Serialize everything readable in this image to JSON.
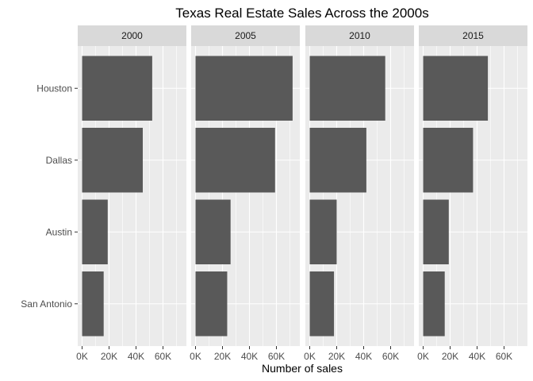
{
  "chart_data": {
    "type": "bar",
    "orientation": "horizontal",
    "title": "Texas Real Estate Sales Across the 2000s",
    "xlabel": "Number of sales",
    "ylabel": "",
    "categories": [
      "Houston",
      "Dallas",
      "Austin",
      "San Antonio"
    ],
    "facets": [
      {
        "label": "2000",
        "values": [
          52000,
          45000,
          19000,
          16000
        ]
      },
      {
        "label": "2005",
        "values": [
          72000,
          59000,
          26000,
          23500
        ]
      },
      {
        "label": "2010",
        "values": [
          56000,
          42000,
          20000,
          18000
        ]
      },
      {
        "label": "2015",
        "values": [
          48000,
          37000,
          19000,
          16000
        ]
      }
    ],
    "xlim": [
      0,
      75000
    ],
    "x_ticks": [
      0,
      20000,
      40000,
      60000
    ],
    "x_tick_labels": [
      "0K",
      "20K",
      "40K",
      "60K"
    ],
    "grid": true,
    "colors": {
      "bar": "#595959",
      "panel_background": "#ebebeb",
      "strip_background": "#d9d9d9",
      "grid": "#ffffff"
    }
  }
}
